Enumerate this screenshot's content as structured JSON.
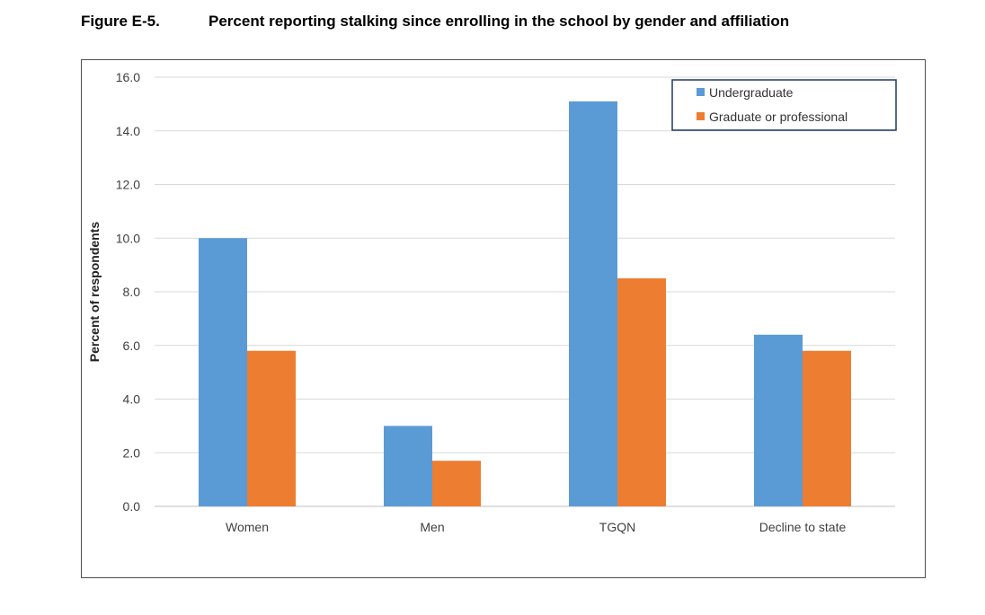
{
  "figure": {
    "label": "Figure E-5.",
    "title": "Percent reporting stalking since enrolling in the school by gender and affiliation"
  },
  "colors": {
    "undergraduate": "#5b9bd5",
    "graduate": "#ed7d31",
    "grid": "#d9d9d9",
    "legend_border": "#1f3864"
  },
  "chart_data": {
    "type": "bar",
    "title": "",
    "xlabel": "",
    "ylabel": "Percent of respondents",
    "ylim": [
      0,
      16
    ],
    "yticks": [
      "0.0",
      "2.0",
      "4.0",
      "6.0",
      "8.0",
      "10.0",
      "12.0",
      "14.0",
      "16.0"
    ],
    "categories": [
      "Women",
      "Men",
      "TGQN",
      "Decline to state"
    ],
    "series": [
      {
        "name": "Undergraduate",
        "values": [
          10.0,
          3.0,
          15.1,
          6.4
        ]
      },
      {
        "name": "Graduate or professional",
        "values": [
          5.8,
          1.7,
          8.5,
          5.8
        ]
      }
    ],
    "grid": true,
    "legend_position": "top-right"
  }
}
